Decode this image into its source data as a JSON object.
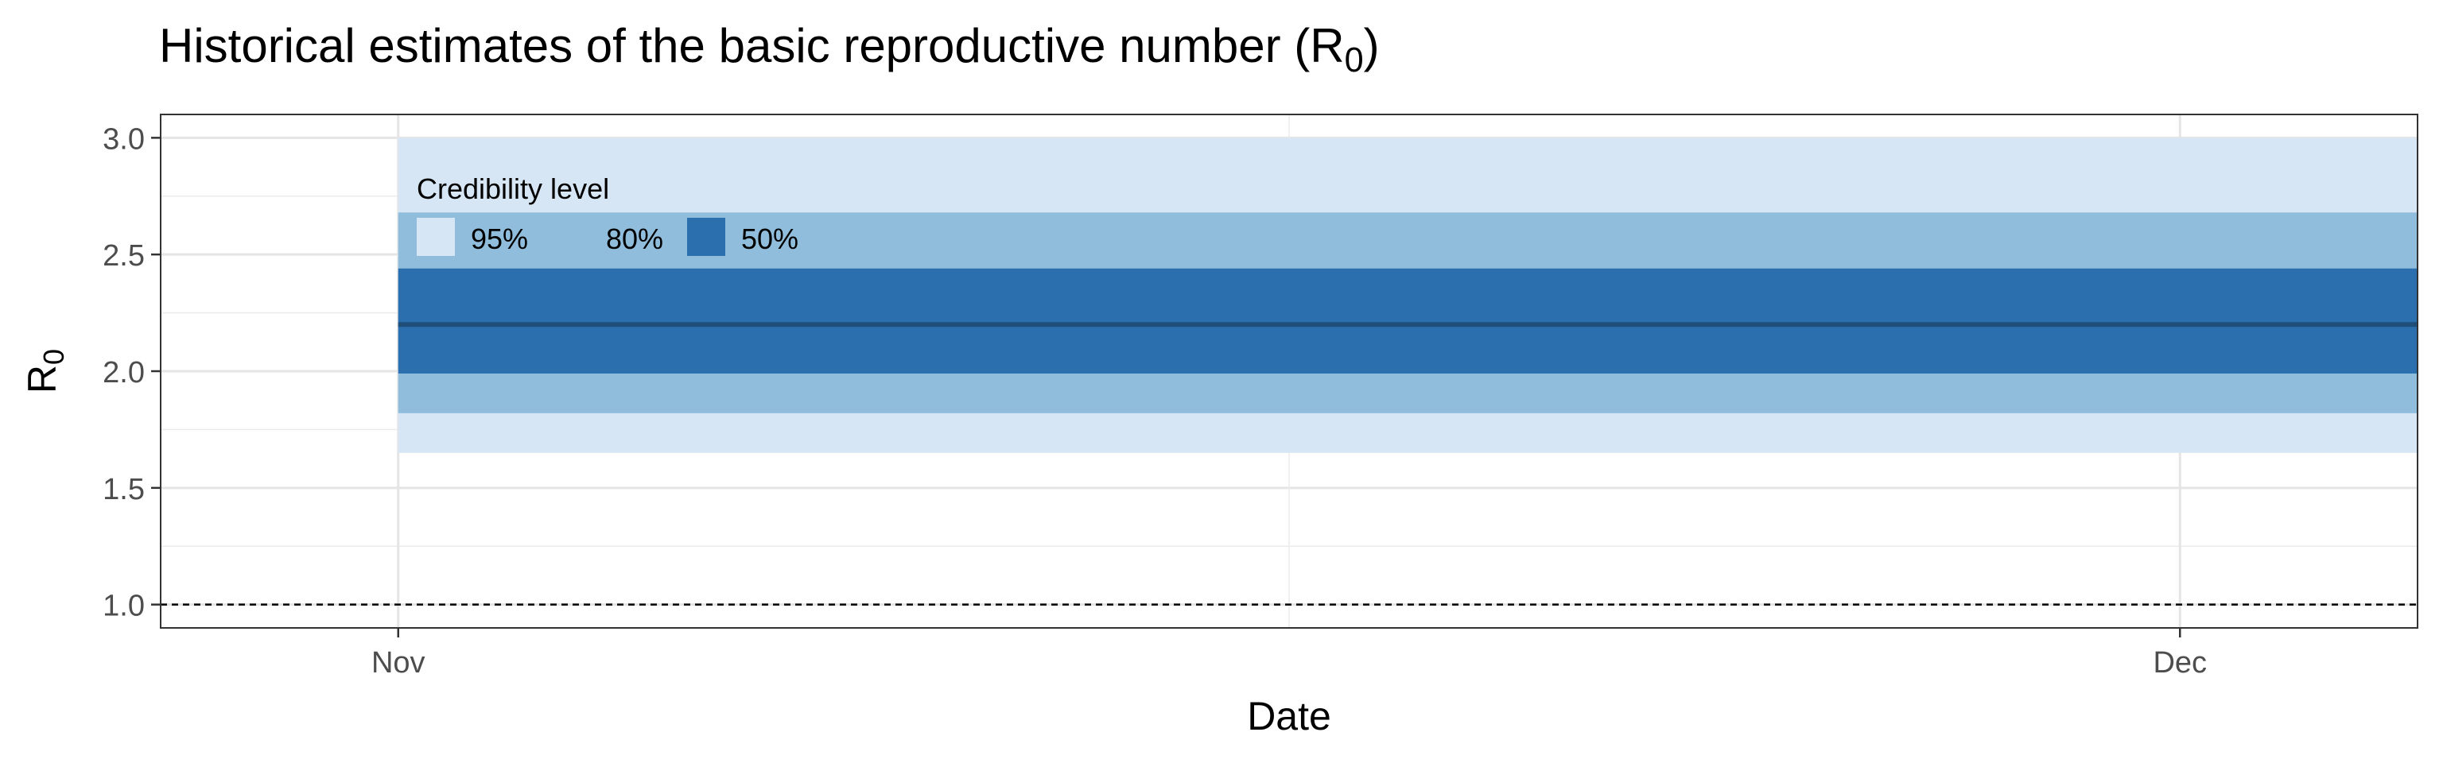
{
  "chart_data": {
    "type": "area",
    "title_main": "Historical estimates of the basic reproductive number (R",
    "title_sub": "0",
    "title_close": ")",
    "xlabel": "Date",
    "ylabel_main": "R",
    "ylabel_sub": "0",
    "x_range": [
      "2020-10-28",
      "2020-12-05"
    ],
    "x_ticks": [
      {
        "value": "2020-11-01",
        "label": "Nov"
      },
      {
        "value": "2020-12-01",
        "label": "Dec"
      }
    ],
    "x_minor_gridlines": [
      "2020-11-16"
    ],
    "ylim": [
      0.9,
      3.1
    ],
    "y_ticks": [
      {
        "value": 1.0,
        "label": "1.0"
      },
      {
        "value": 1.5,
        "label": "1.5"
      },
      {
        "value": 2.0,
        "label": "2.0"
      },
      {
        "value": 2.5,
        "label": "2.5"
      },
      {
        "value": 3.0,
        "label": "3.0"
      }
    ],
    "y_minor_gridlines": [
      1.25,
      1.75,
      2.25,
      2.75
    ],
    "series_x": [
      "2020-11-01",
      "2020-12-05"
    ],
    "median": 2.2,
    "bands": [
      {
        "level": "95%",
        "lower": 1.65,
        "upper": 3.0,
        "color": "#d6e6f4"
      },
      {
        "level": "80%",
        "lower": 1.82,
        "upper": 2.68,
        "color": "#8fbddb"
      },
      {
        "level": "50%",
        "lower": 1.99,
        "upper": 2.44,
        "color": "#2b6faf"
      }
    ],
    "median_color": "#1f4e79",
    "reference_line": {
      "y": 1.0,
      "style": "dashed"
    },
    "legend": {
      "title": "Credibility level",
      "placement": "top-left inside plot",
      "items": [
        {
          "label": "95%",
          "color": "#d6e6f4"
        },
        {
          "label": "80%",
          "color": "#8fbddb"
        },
        {
          "label": "50%",
          "color": "#2b6faf"
        }
      ]
    },
    "grid": true
  }
}
